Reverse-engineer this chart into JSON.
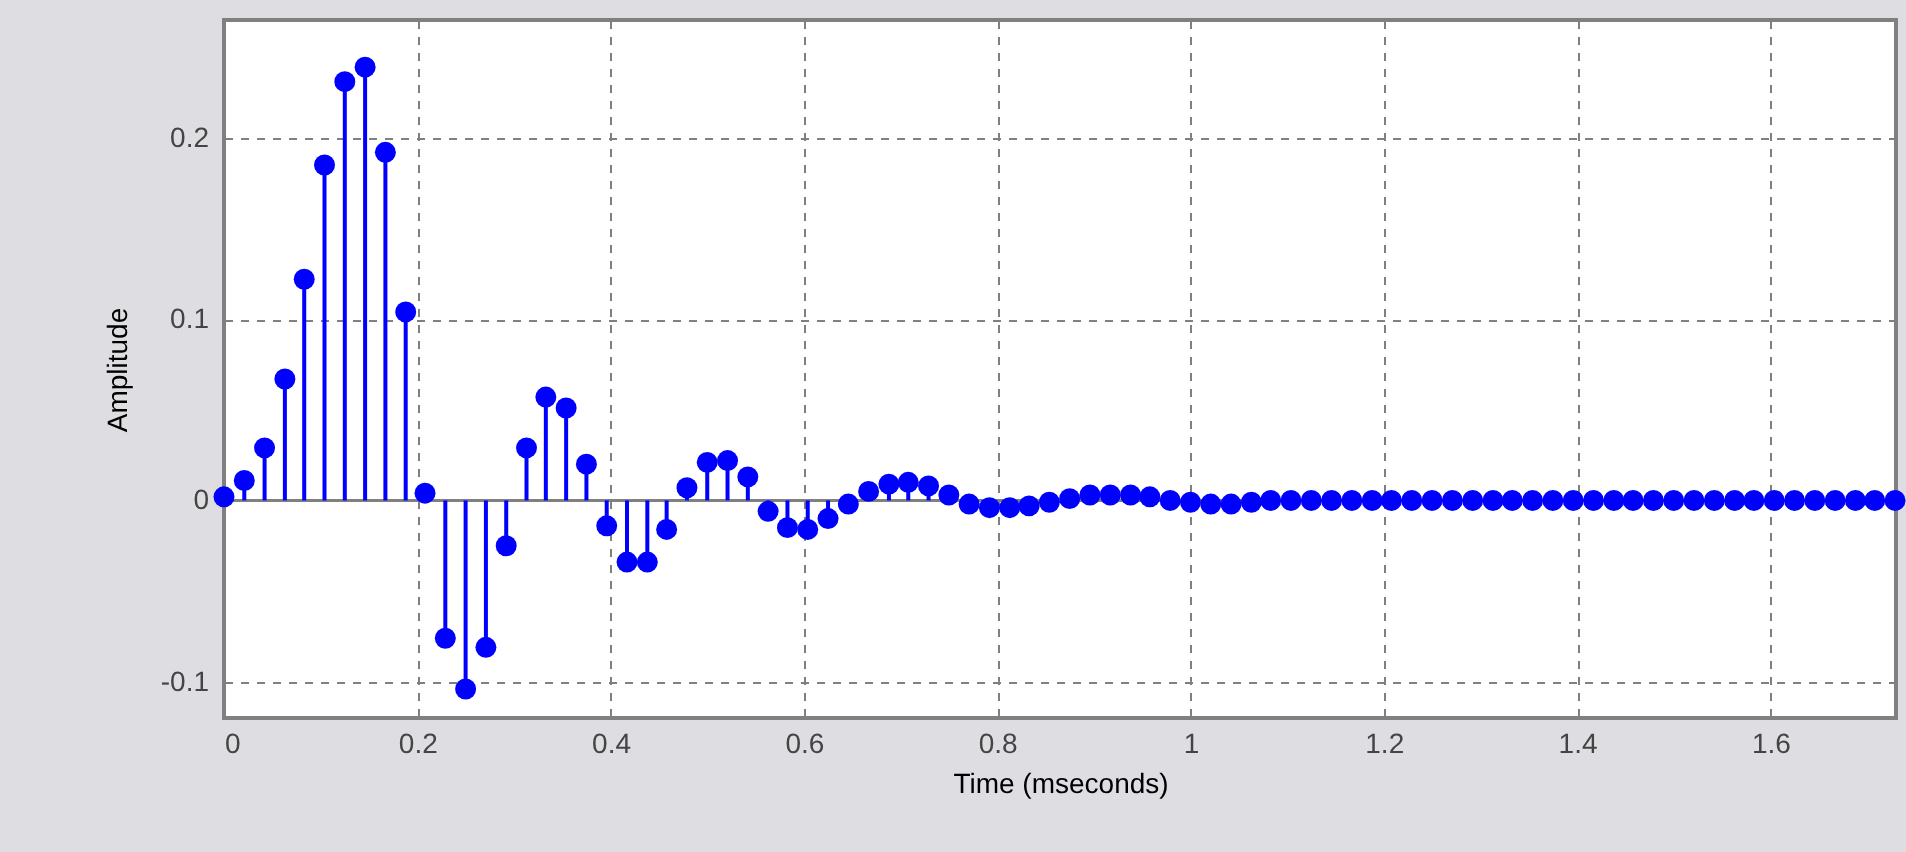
{
  "chart_data": {
    "type": "lollipop",
    "xlabel": "Time (mseconds)",
    "ylabel": "Amplitude",
    "x": [
      0,
      0.021,
      0.042,
      0.063,
      0.083,
      0.104,
      0.125,
      0.146,
      0.167,
      0.188,
      0.208,
      0.229,
      0.25,
      0.271,
      0.292,
      0.313,
      0.333,
      0.354,
      0.375,
      0.396,
      0.417,
      0.438,
      0.458,
      0.479,
      0.5,
      0.521,
      0.542,
      0.563,
      0.583,
      0.604,
      0.625,
      0.646,
      0.667,
      0.688,
      0.708,
      0.729,
      0.75,
      0.771,
      0.792,
      0.813,
      0.833,
      0.854,
      0.875,
      0.896,
      0.917,
      0.938,
      0.958,
      0.979,
      1,
      1.021,
      1.042,
      1.063,
      1.083,
      1.104,
      1.125,
      1.146,
      1.167,
      1.188,
      1.208,
      1.229,
      1.25,
      1.271,
      1.292,
      1.313,
      1.333,
      1.354,
      1.375,
      1.396,
      1.417,
      1.438,
      1.458,
      1.479,
      1.5,
      1.521,
      1.542,
      1.563,
      1.583,
      1.604,
      1.625,
      1.646,
      1.667,
      1.688,
      1.708,
      1.729
    ],
    "series": [
      {
        "color": "#0000ff",
        "values": [
          0.002,
          0.011,
          0.029,
          0.067,
          0.122,
          0.185,
          0.231,
          0.239,
          0.192,
          0.104,
          0.004,
          -0.076,
          -0.104,
          -0.081,
          -0.025,
          0.029,
          0.057,
          0.051,
          0.02,
          -0.014,
          -0.034,
          -0.034,
          -0.016,
          0.007,
          0.021,
          0.022,
          0.013,
          -0.006,
          -0.015,
          -0.016,
          -0.01,
          -0.002,
          0.005,
          0.009,
          0.01,
          0.008,
          0.003,
          -0.002,
          -0.004,
          -0.004,
          -0.003,
          -0.001,
          0.001,
          0.003,
          0.003,
          0.003,
          0.002,
          0,
          -0.001,
          -0.002,
          -0.002,
          -0.001,
          0,
          0,
          0,
          0,
          0,
          0,
          0,
          0,
          0,
          0,
          0,
          0,
          0,
          0,
          0,
          0,
          0,
          0,
          0,
          0,
          0,
          0,
          0,
          0,
          0,
          0,
          0,
          0,
          0,
          0,
          0,
          0
        ]
      }
    ],
    "xlim": [
      0,
      1.73
    ],
    "xticks": [
      0,
      0.2,
      0.4,
      0.6,
      0.8,
      1,
      1.2,
      1.4,
      1.6
    ],
    "ylim": [
      -0.12,
      0.265
    ],
    "yticks": [
      -0.1,
      0,
      0.1,
      0.2
    ],
    "grid": true,
    "marker": "circle"
  }
}
